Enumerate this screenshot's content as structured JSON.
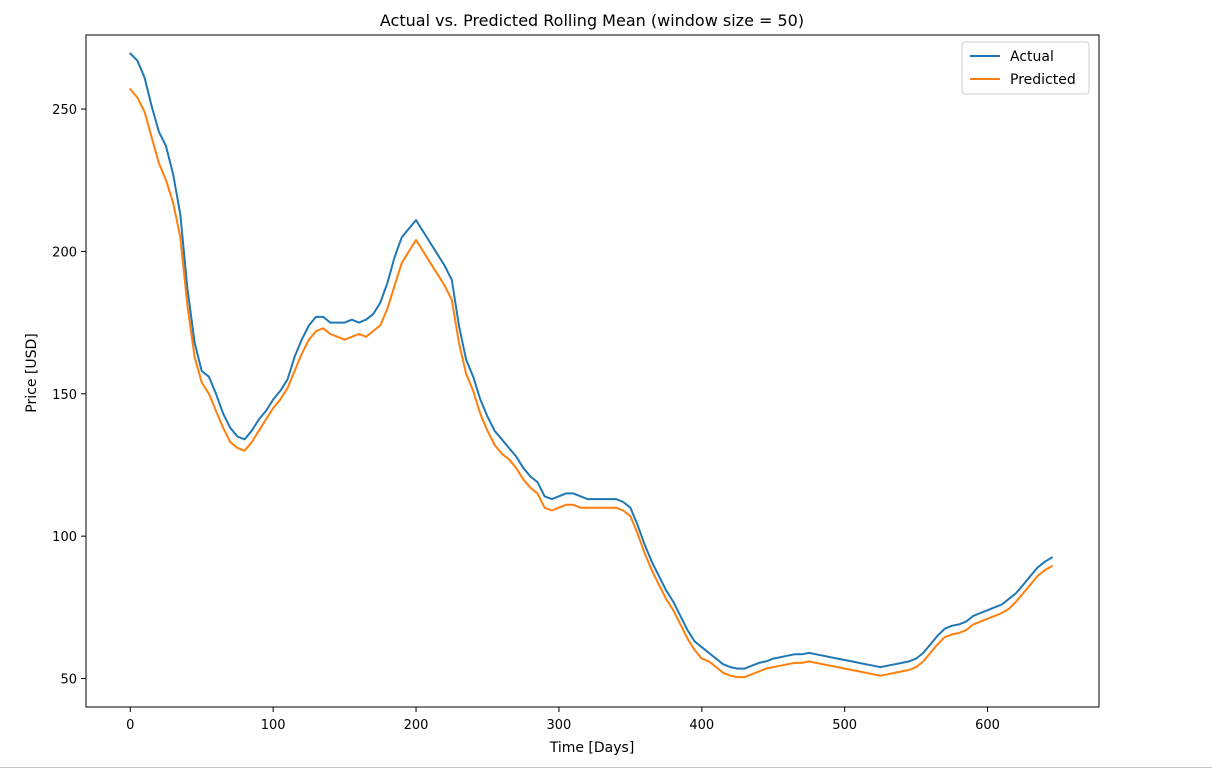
{
  "chart_data": {
    "type": "line",
    "title": "Actual vs. Predicted Rolling Mean (window size = 50)",
    "xlabel": "Time [Days]",
    "ylabel": "Price [USD]",
    "xlim": [
      -31,
      678
    ],
    "ylim": [
      40,
      276
    ],
    "x_ticks": [
      0,
      100,
      200,
      300,
      400,
      500,
      600
    ],
    "y_ticks": [
      50,
      100,
      150,
      200,
      250
    ],
    "grid": false,
    "legend_position": "top-right",
    "series": [
      {
        "name": "Actual",
        "color": "#1f77b4",
        "points": [
          [
            0,
            269.5
          ],
          [
            5,
            267
          ],
          [
            10,
            261
          ],
          [
            15,
            251
          ],
          [
            20,
            242
          ],
          [
            25,
            237
          ],
          [
            30,
            227
          ],
          [
            35,
            213
          ],
          [
            40,
            187
          ],
          [
            45,
            168
          ],
          [
            50,
            158
          ],
          [
            55,
            156
          ],
          [
            60,
            150
          ],
          [
            65,
            143
          ],
          [
            70,
            138
          ],
          [
            75,
            135
          ],
          [
            80,
            134
          ],
          [
            85,
            137
          ],
          [
            90,
            141
          ],
          [
            95,
            144
          ],
          [
            100,
            148
          ],
          [
            105,
            151
          ],
          [
            110,
            155
          ],
          [
            115,
            163
          ],
          [
            120,
            169
          ],
          [
            125,
            174
          ],
          [
            130,
            177
          ],
          [
            135,
            177
          ],
          [
            140,
            175
          ],
          [
            145,
            175
          ],
          [
            150,
            175
          ],
          [
            155,
            176
          ],
          [
            160,
            175
          ],
          [
            165,
            176
          ],
          [
            170,
            178
          ],
          [
            175,
            182
          ],
          [
            180,
            189
          ],
          [
            185,
            198
          ],
          [
            190,
            205
          ],
          [
            195,
            208
          ],
          [
            200,
            211
          ],
          [
            205,
            207
          ],
          [
            210,
            203
          ],
          [
            215,
            199
          ],
          [
            220,
            195
          ],
          [
            225,
            190
          ],
          [
            230,
            174
          ],
          [
            235,
            162
          ],
          [
            240,
            156
          ],
          [
            245,
            148
          ],
          [
            250,
            142
          ],
          [
            255,
            137
          ],
          [
            260,
            134
          ],
          [
            265,
            131
          ],
          [
            270,
            128
          ],
          [
            275,
            124
          ],
          [
            280,
            121
          ],
          [
            285,
            119
          ],
          [
            290,
            114
          ],
          [
            295,
            113
          ],
          [
            300,
            114
          ],
          [
            305,
            115
          ],
          [
            310,
            115
          ],
          [
            315,
            114
          ],
          [
            320,
            113
          ],
          [
            325,
            113
          ],
          [
            330,
            113
          ],
          [
            335,
            113
          ],
          [
            340,
            113
          ],
          [
            345,
            112
          ],
          [
            350,
            110
          ],
          [
            355,
            104
          ],
          [
            360,
            97
          ],
          [
            365,
            91
          ],
          [
            370,
            86
          ],
          [
            375,
            81
          ],
          [
            380,
            77
          ],
          [
            385,
            72
          ],
          [
            390,
            67
          ],
          [
            395,
            63
          ],
          [
            400,
            61
          ],
          [
            405,
            59
          ],
          [
            410,
            57
          ],
          [
            415,
            55
          ],
          [
            420,
            54
          ],
          [
            425,
            53.5
          ],
          [
            430,
            53.5
          ],
          [
            435,
            54.5
          ],
          [
            440,
            55.5
          ],
          [
            445,
            56
          ],
          [
            450,
            57
          ],
          [
            455,
            57.5
          ],
          [
            460,
            58
          ],
          [
            465,
            58.5
          ],
          [
            470,
            58.5
          ],
          [
            475,
            59
          ],
          [
            480,
            58.5
          ],
          [
            485,
            58
          ],
          [
            490,
            57.5
          ],
          [
            495,
            57
          ],
          [
            500,
            56.5
          ],
          [
            505,
            56
          ],
          [
            510,
            55.5
          ],
          [
            515,
            55
          ],
          [
            520,
            54.5
          ],
          [
            525,
            54
          ],
          [
            530,
            54.5
          ],
          [
            535,
            55
          ],
          [
            540,
            55.5
          ],
          [
            545,
            56
          ],
          [
            550,
            57
          ],
          [
            555,
            59
          ],
          [
            560,
            62
          ],
          [
            565,
            65
          ],
          [
            570,
            67.5
          ],
          [
            575,
            68.5
          ],
          [
            580,
            69
          ],
          [
            585,
            70
          ],
          [
            590,
            72
          ],
          [
            595,
            73
          ],
          [
            600,
            74
          ],
          [
            605,
            75
          ],
          [
            610,
            76
          ],
          [
            615,
            78
          ],
          [
            620,
            80
          ],
          [
            625,
            83
          ],
          [
            630,
            86
          ],
          [
            635,
            89
          ],
          [
            640,
            91
          ],
          [
            645,
            92.5
          ]
        ]
      },
      {
        "name": "Predicted",
        "color": "#ff7f0e",
        "points": [
          [
            0,
            257
          ],
          [
            5,
            254
          ],
          [
            10,
            249
          ],
          [
            15,
            240
          ],
          [
            20,
            231
          ],
          [
            25,
            225
          ],
          [
            30,
            217
          ],
          [
            35,
            205
          ],
          [
            40,
            181
          ],
          [
            45,
            163
          ],
          [
            50,
            154
          ],
          [
            55,
            150
          ],
          [
            60,
            144
          ],
          [
            65,
            138
          ],
          [
            70,
            133
          ],
          [
            75,
            131
          ],
          [
            80,
            130
          ],
          [
            85,
            133
          ],
          [
            90,
            137
          ],
          [
            95,
            141
          ],
          [
            100,
            145
          ],
          [
            105,
            148
          ],
          [
            110,
            152
          ],
          [
            115,
            158
          ],
          [
            120,
            164
          ],
          [
            125,
            169
          ],
          [
            130,
            172
          ],
          [
            135,
            173
          ],
          [
            140,
            171
          ],
          [
            145,
            170
          ],
          [
            150,
            169
          ],
          [
            155,
            170
          ],
          [
            160,
            171
          ],
          [
            165,
            170
          ],
          [
            170,
            172
          ],
          [
            175,
            174
          ],
          [
            180,
            180
          ],
          [
            185,
            188
          ],
          [
            190,
            196
          ],
          [
            195,
            200
          ],
          [
            200,
            204
          ],
          [
            205,
            200
          ],
          [
            210,
            196
          ],
          [
            215,
            192
          ],
          [
            220,
            188
          ],
          [
            225,
            183
          ],
          [
            230,
            168
          ],
          [
            235,
            157
          ],
          [
            240,
            151
          ],
          [
            245,
            143
          ],
          [
            250,
            137
          ],
          [
            255,
            132
          ],
          [
            260,
            129
          ],
          [
            265,
            127
          ],
          [
            270,
            124
          ],
          [
            275,
            120
          ],
          [
            280,
            117
          ],
          [
            285,
            115
          ],
          [
            290,
            110
          ],
          [
            295,
            109
          ],
          [
            300,
            110
          ],
          [
            305,
            111
          ],
          [
            310,
            111
          ],
          [
            315,
            110
          ],
          [
            320,
            110
          ],
          [
            325,
            110
          ],
          [
            330,
            110
          ],
          [
            335,
            110
          ],
          [
            340,
            110
          ],
          [
            345,
            109
          ],
          [
            350,
            107
          ],
          [
            355,
            101
          ],
          [
            360,
            94
          ],
          [
            365,
            88
          ],
          [
            370,
            83
          ],
          [
            375,
            78
          ],
          [
            380,
            74
          ],
          [
            385,
            69
          ],
          [
            390,
            64
          ],
          [
            395,
            60
          ],
          [
            400,
            57
          ],
          [
            405,
            56
          ],
          [
            410,
            54
          ],
          [
            415,
            52
          ],
          [
            420,
            51
          ],
          [
            425,
            50.5
          ],
          [
            430,
            50.5
          ],
          [
            435,
            51.5
          ],
          [
            440,
            52.5
          ],
          [
            445,
            53.5
          ],
          [
            450,
            54
          ],
          [
            455,
            54.5
          ],
          [
            460,
            55
          ],
          [
            465,
            55.5
          ],
          [
            470,
            55.5
          ],
          [
            475,
            56
          ],
          [
            480,
            55.5
          ],
          [
            485,
            55
          ],
          [
            490,
            54.5
          ],
          [
            495,
            54
          ],
          [
            500,
            53.5
          ],
          [
            505,
            53
          ],
          [
            510,
            52.5
          ],
          [
            515,
            52
          ],
          [
            520,
            51.5
          ],
          [
            525,
            51
          ],
          [
            530,
            51.5
          ],
          [
            535,
            52
          ],
          [
            540,
            52.5
          ],
          [
            545,
            53
          ],
          [
            550,
            54
          ],
          [
            555,
            56
          ],
          [
            560,
            59
          ],
          [
            565,
            62
          ],
          [
            570,
            64.5
          ],
          [
            575,
            65.5
          ],
          [
            580,
            66
          ],
          [
            585,
            67
          ],
          [
            590,
            69
          ],
          [
            595,
            70
          ],
          [
            600,
            71
          ],
          [
            605,
            72
          ],
          [
            610,
            73
          ],
          [
            615,
            74.5
          ],
          [
            620,
            77
          ],
          [
            625,
            80
          ],
          [
            630,
            83
          ],
          [
            635,
            86
          ],
          [
            640,
            88
          ],
          [
            645,
            89.5
          ]
        ]
      }
    ]
  }
}
